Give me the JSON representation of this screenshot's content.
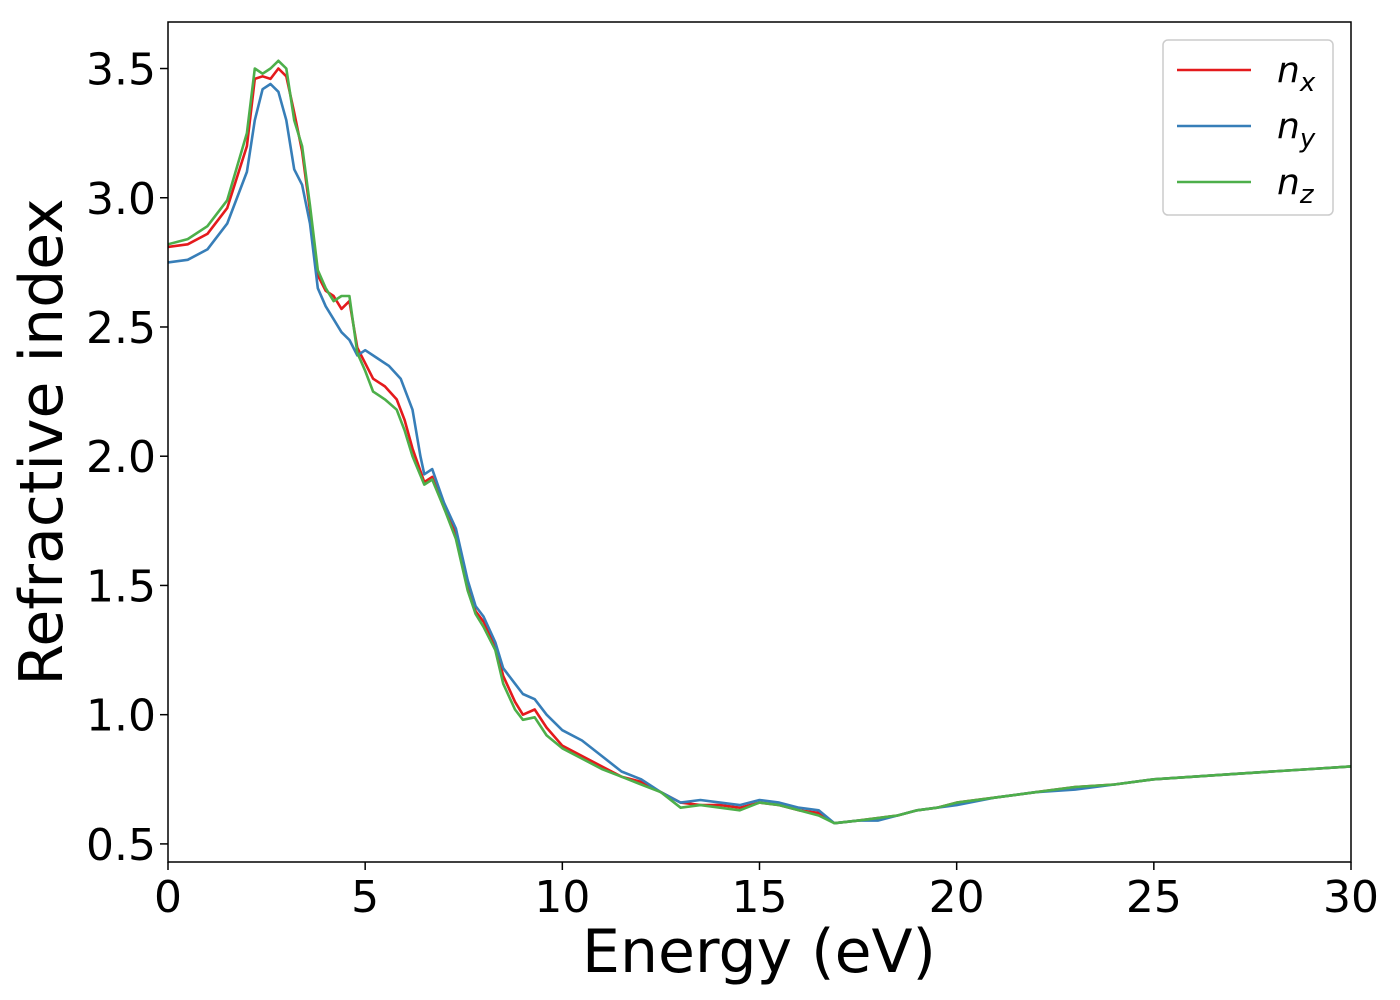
{
  "chart_data": {
    "type": "line",
    "xlabel": "Energy (eV)",
    "ylabel": "Refractive index",
    "xlim": [
      0,
      30
    ],
    "ylim": [
      0.43,
      3.68
    ],
    "xticks": [
      "0",
      "5",
      "10",
      "15",
      "20",
      "25",
      "30"
    ],
    "yticks": [
      "0.5",
      "1.0",
      "1.5",
      "2.0",
      "2.5",
      "3.0",
      "3.5"
    ],
    "grid": false,
    "legend_position": "top-right",
    "series": [
      {
        "name": "n",
        "subscript": "x",
        "color": "#e41a1c",
        "points": [
          [
            0,
            2.81
          ],
          [
            0.5,
            2.82
          ],
          [
            1,
            2.86
          ],
          [
            1.5,
            2.96
          ],
          [
            2,
            3.2
          ],
          [
            2.2,
            3.46
          ],
          [
            2.4,
            3.47
          ],
          [
            2.6,
            3.46
          ],
          [
            2.8,
            3.5
          ],
          [
            3.0,
            3.47
          ],
          [
            3.2,
            3.33
          ],
          [
            3.4,
            3.18
          ],
          [
            3.6,
            2.95
          ],
          [
            3.8,
            2.7
          ],
          [
            4.0,
            2.64
          ],
          [
            4.2,
            2.62
          ],
          [
            4.4,
            2.57
          ],
          [
            4.6,
            2.6
          ],
          [
            4.8,
            2.42
          ],
          [
            5.0,
            2.36
          ],
          [
            5.2,
            2.3
          ],
          [
            5.5,
            2.27
          ],
          [
            5.8,
            2.22
          ],
          [
            6.0,
            2.14
          ],
          [
            6.2,
            2.03
          ],
          [
            6.5,
            1.9
          ],
          [
            6.7,
            1.92
          ],
          [
            7.0,
            1.8
          ],
          [
            7.3,
            1.7
          ],
          [
            7.6,
            1.5
          ],
          [
            7.8,
            1.4
          ],
          [
            8.0,
            1.36
          ],
          [
            8.3,
            1.27
          ],
          [
            8.5,
            1.15
          ],
          [
            8.8,
            1.05
          ],
          [
            9.0,
            1.0
          ],
          [
            9.3,
            1.02
          ],
          [
            9.6,
            0.95
          ],
          [
            10.0,
            0.88
          ],
          [
            10.5,
            0.84
          ],
          [
            11.0,
            0.8
          ],
          [
            11.5,
            0.76
          ],
          [
            12.0,
            0.74
          ],
          [
            12.5,
            0.7
          ],
          [
            13.0,
            0.66
          ],
          [
            13.5,
            0.65
          ],
          [
            14.0,
            0.65
          ],
          [
            14.5,
            0.64
          ],
          [
            15.0,
            0.66
          ],
          [
            15.5,
            0.65
          ],
          [
            16.0,
            0.63
          ],
          [
            16.5,
            0.62
          ],
          [
            16.9,
            0.58
          ],
          [
            17.5,
            0.59
          ],
          [
            18.0,
            0.6
          ],
          [
            18.5,
            0.61
          ],
          [
            19.0,
            0.63
          ],
          [
            19.5,
            0.64
          ],
          [
            20.0,
            0.66
          ],
          [
            21.0,
            0.68
          ],
          [
            22.0,
            0.7
          ],
          [
            23.0,
            0.72
          ],
          [
            24.0,
            0.73
          ],
          [
            25.0,
            0.75
          ],
          [
            26.0,
            0.76
          ],
          [
            27.0,
            0.77
          ],
          [
            28.0,
            0.78
          ],
          [
            29.0,
            0.79
          ],
          [
            30.0,
            0.8
          ]
        ]
      },
      {
        "name": "n",
        "subscript": "y",
        "color": "#377eb8",
        "points": [
          [
            0,
            2.75
          ],
          [
            0.5,
            2.76
          ],
          [
            1,
            2.8
          ],
          [
            1.5,
            2.9
          ],
          [
            2,
            3.1
          ],
          [
            2.2,
            3.3
          ],
          [
            2.4,
            3.42
          ],
          [
            2.6,
            3.44
          ],
          [
            2.8,
            3.41
          ],
          [
            3.0,
            3.3
          ],
          [
            3.2,
            3.11
          ],
          [
            3.4,
            3.05
          ],
          [
            3.6,
            2.9
          ],
          [
            3.8,
            2.65
          ],
          [
            4.0,
            2.58
          ],
          [
            4.2,
            2.53
          ],
          [
            4.4,
            2.48
          ],
          [
            4.6,
            2.45
          ],
          [
            4.8,
            2.39
          ],
          [
            5.0,
            2.41
          ],
          [
            5.3,
            2.38
          ],
          [
            5.6,
            2.35
          ],
          [
            5.9,
            2.3
          ],
          [
            6.2,
            2.18
          ],
          [
            6.4,
            2.0
          ],
          [
            6.5,
            1.93
          ],
          [
            6.7,
            1.95
          ],
          [
            7.0,
            1.82
          ],
          [
            7.3,
            1.72
          ],
          [
            7.6,
            1.52
          ],
          [
            7.8,
            1.42
          ],
          [
            8.0,
            1.38
          ],
          [
            8.3,
            1.28
          ],
          [
            8.5,
            1.18
          ],
          [
            8.8,
            1.12
          ],
          [
            9.0,
            1.08
          ],
          [
            9.3,
            1.06
          ],
          [
            9.6,
            1.0
          ],
          [
            10.0,
            0.94
          ],
          [
            10.5,
            0.9
          ],
          [
            11.0,
            0.84
          ],
          [
            11.5,
            0.78
          ],
          [
            12.0,
            0.75
          ],
          [
            12.5,
            0.7
          ],
          [
            13.0,
            0.66
          ],
          [
            13.5,
            0.67
          ],
          [
            14.0,
            0.66
          ],
          [
            14.5,
            0.65
          ],
          [
            15.0,
            0.67
          ],
          [
            15.5,
            0.66
          ],
          [
            16.0,
            0.64
          ],
          [
            16.5,
            0.63
          ],
          [
            16.9,
            0.58
          ],
          [
            17.5,
            0.59
          ],
          [
            18.0,
            0.59
          ],
          [
            18.5,
            0.61
          ],
          [
            19.0,
            0.63
          ],
          [
            19.5,
            0.64
          ],
          [
            20.0,
            0.65
          ],
          [
            21.0,
            0.68
          ],
          [
            22.0,
            0.7
          ],
          [
            23.0,
            0.71
          ],
          [
            24.0,
            0.73
          ],
          [
            25.0,
            0.75
          ],
          [
            26.0,
            0.76
          ],
          [
            27.0,
            0.77
          ],
          [
            28.0,
            0.78
          ],
          [
            29.0,
            0.79
          ],
          [
            30.0,
            0.8
          ]
        ]
      },
      {
        "name": "n",
        "subscript": "z",
        "color": "#4daf4a",
        "points": [
          [
            0,
            2.82
          ],
          [
            0.5,
            2.84
          ],
          [
            1,
            2.89
          ],
          [
            1.5,
            2.99
          ],
          [
            2,
            3.25
          ],
          [
            2.2,
            3.5
          ],
          [
            2.4,
            3.48
          ],
          [
            2.6,
            3.5
          ],
          [
            2.8,
            3.53
          ],
          [
            3.0,
            3.5
          ],
          [
            3.2,
            3.3
          ],
          [
            3.4,
            3.2
          ],
          [
            3.6,
            2.97
          ],
          [
            3.8,
            2.72
          ],
          [
            4.0,
            2.65
          ],
          [
            4.2,
            2.6
          ],
          [
            4.4,
            2.62
          ],
          [
            4.6,
            2.62
          ],
          [
            4.8,
            2.4
          ],
          [
            5.0,
            2.33
          ],
          [
            5.2,
            2.25
          ],
          [
            5.5,
            2.22
          ],
          [
            5.8,
            2.18
          ],
          [
            6.0,
            2.1
          ],
          [
            6.2,
            2.0
          ],
          [
            6.5,
            1.89
          ],
          [
            6.7,
            1.91
          ],
          [
            7.0,
            1.8
          ],
          [
            7.3,
            1.68
          ],
          [
            7.6,
            1.48
          ],
          [
            7.8,
            1.39
          ],
          [
            8.0,
            1.34
          ],
          [
            8.3,
            1.25
          ],
          [
            8.5,
            1.12
          ],
          [
            8.8,
            1.02
          ],
          [
            9.0,
            0.98
          ],
          [
            9.3,
            0.99
          ],
          [
            9.6,
            0.92
          ],
          [
            10.0,
            0.87
          ],
          [
            10.5,
            0.83
          ],
          [
            11.0,
            0.79
          ],
          [
            11.5,
            0.76
          ],
          [
            12.0,
            0.73
          ],
          [
            12.5,
            0.7
          ],
          [
            13.0,
            0.64
          ],
          [
            13.5,
            0.65
          ],
          [
            14.0,
            0.64
          ],
          [
            14.5,
            0.63
          ],
          [
            15.0,
            0.66
          ],
          [
            15.5,
            0.65
          ],
          [
            16.0,
            0.63
          ],
          [
            16.5,
            0.61
          ],
          [
            16.9,
            0.58
          ],
          [
            17.5,
            0.59
          ],
          [
            18.0,
            0.6
          ],
          [
            18.5,
            0.61
          ],
          [
            19.0,
            0.63
          ],
          [
            19.5,
            0.64
          ],
          [
            20.0,
            0.66
          ],
          [
            21.0,
            0.68
          ],
          [
            22.0,
            0.7
          ],
          [
            23.0,
            0.72
          ],
          [
            24.0,
            0.73
          ],
          [
            25.0,
            0.75
          ],
          [
            26.0,
            0.76
          ],
          [
            27.0,
            0.77
          ],
          [
            28.0,
            0.78
          ],
          [
            29.0,
            0.79
          ],
          [
            30.0,
            0.8
          ]
        ]
      }
    ]
  }
}
